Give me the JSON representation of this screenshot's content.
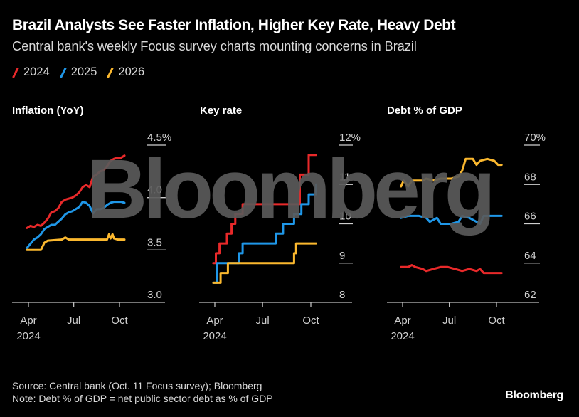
{
  "header": {
    "title": "Brazil Analysts See Faster Inflation, Higher Key Rate, Heavy Debt",
    "subtitle": "Central bank's weekly Focus survey charts mounting concerns in Brazil"
  },
  "legend": [
    {
      "label": "2024",
      "color": "#e8292a"
    },
    {
      "label": "2025",
      "color": "#1f97e8"
    },
    {
      "label": "2026",
      "color": "#fbb82e"
    }
  ],
  "footer": {
    "source": "Source: Central bank (Oct. 11 Focus survey); Bloomberg",
    "note": "Note: Debt % of GDP = net public sector debt as % of GDP",
    "brand": "Bloomberg"
  },
  "watermark": "Bloomberg",
  "chart_data": [
    {
      "type": "line",
      "title": "Inflation (YoY)",
      "xlabel": "",
      "ylabel": "",
      "x_ticks": [
        "Apr\n2024",
        "Jul",
        "Oct"
      ],
      "x_tick_dates": [
        "2024-04-01",
        "2024-07-01",
        "2024-10-01"
      ],
      "xlim": [
        "2024-03-20",
        "2024-11-20"
      ],
      "ylim": [
        3.0,
        4.5
      ],
      "y_ticks": [
        {
          "value": 4.5,
          "label": "4.5%"
        },
        {
          "value": 4.0,
          "label": "4.0"
        },
        {
          "value": 3.5,
          "label": "3.5"
        },
        {
          "value": 3.0,
          "label": "3.0"
        }
      ],
      "series": [
        {
          "name": "2024",
          "color": "#e8292a",
          "points": [
            [
              "2024-03-29",
              3.71
            ],
            [
              "2024-04-05",
              3.73
            ],
            [
              "2024-04-12",
              3.72
            ],
            [
              "2024-04-19",
              3.74
            ],
            [
              "2024-04-26",
              3.73
            ],
            [
              "2024-05-03",
              3.76
            ],
            [
              "2024-05-10",
              3.8
            ],
            [
              "2024-05-17",
              3.86
            ],
            [
              "2024-05-24",
              3.87
            ],
            [
              "2024-05-31",
              3.9
            ],
            [
              "2024-06-07",
              3.96
            ],
            [
              "2024-06-14",
              3.98
            ],
            [
              "2024-06-21",
              3.99
            ],
            [
              "2024-06-28",
              4.0
            ],
            [
              "2024-07-05",
              4.02
            ],
            [
              "2024-07-12",
              4.05
            ],
            [
              "2024-07-19",
              4.1
            ],
            [
              "2024-07-26",
              4.12
            ],
            [
              "2024-08-02",
              4.1
            ],
            [
              "2024-08-09",
              4.2
            ],
            [
              "2024-08-16",
              4.22
            ],
            [
              "2024-08-23",
              4.25
            ],
            [
              "2024-08-30",
              4.26
            ],
            [
              "2024-09-06",
              4.3
            ],
            [
              "2024-09-13",
              4.35
            ],
            [
              "2024-09-20",
              4.37
            ],
            [
              "2024-09-27",
              4.38
            ],
            [
              "2024-10-04",
              4.38
            ],
            [
              "2024-10-11",
              4.4
            ]
          ]
        },
        {
          "name": "2025",
          "color": "#1f97e8",
          "points": [
            [
              "2024-03-29",
              3.52
            ],
            [
              "2024-04-05",
              3.56
            ],
            [
              "2024-04-12",
              3.6
            ],
            [
              "2024-04-19",
              3.62
            ],
            [
              "2024-04-26",
              3.65
            ],
            [
              "2024-05-03",
              3.7
            ],
            [
              "2024-05-10",
              3.72
            ],
            [
              "2024-05-17",
              3.74
            ],
            [
              "2024-05-24",
              3.74
            ],
            [
              "2024-05-31",
              3.77
            ],
            [
              "2024-06-07",
              3.8
            ],
            [
              "2024-06-14",
              3.84
            ],
            [
              "2024-06-21",
              3.86
            ],
            [
              "2024-06-28",
              3.87
            ],
            [
              "2024-07-05",
              3.89
            ],
            [
              "2024-07-12",
              3.91
            ],
            [
              "2024-07-19",
              3.96
            ],
            [
              "2024-07-26",
              3.95
            ],
            [
              "2024-08-02",
              3.92
            ],
            [
              "2024-08-09",
              3.85
            ],
            [
              "2024-08-16",
              3.89
            ],
            [
              "2024-08-23",
              3.89
            ],
            [
              "2024-08-30",
              3.9
            ],
            [
              "2024-09-06",
              3.93
            ],
            [
              "2024-09-13",
              3.95
            ],
            [
              "2024-09-20",
              3.96
            ],
            [
              "2024-09-27",
              3.96
            ],
            [
              "2024-10-04",
              3.96
            ],
            [
              "2024-10-11",
              3.95
            ]
          ]
        },
        {
          "name": "2026",
          "color": "#fbb82e",
          "points": [
            [
              "2024-03-29",
              3.5
            ],
            [
              "2024-04-26",
              3.5
            ],
            [
              "2024-05-03",
              3.57
            ],
            [
              "2024-05-10",
              3.59
            ],
            [
              "2024-06-07",
              3.6
            ],
            [
              "2024-06-14",
              3.62
            ],
            [
              "2024-06-21",
              3.6
            ],
            [
              "2024-09-06",
              3.6
            ],
            [
              "2024-09-10",
              3.65
            ],
            [
              "2024-09-13",
              3.61
            ],
            [
              "2024-09-17",
              3.65
            ],
            [
              "2024-09-20",
              3.61
            ],
            [
              "2024-09-27",
              3.6
            ],
            [
              "2024-10-11",
              3.6
            ]
          ]
        }
      ]
    },
    {
      "type": "line",
      "title": "Key rate",
      "xlabel": "",
      "ylabel": "",
      "x_ticks": [
        "Apr\n2024",
        "Jul",
        "Oct"
      ],
      "x_tick_dates": [
        "2024-04-01",
        "2024-07-01",
        "2024-10-01"
      ],
      "xlim": [
        "2024-03-20",
        "2024-11-20"
      ],
      "ylim": [
        8,
        12
      ],
      "y_ticks": [
        {
          "value": 12,
          "label": "12%"
        },
        {
          "value": 11,
          "label": "11"
        },
        {
          "value": 10,
          "label": "10"
        },
        {
          "value": 9,
          "label": "9"
        },
        {
          "value": 8,
          "label": "8"
        }
      ],
      "series": [
        {
          "name": "2024",
          "color": "#e8292a",
          "points": [
            [
              "2024-03-29",
              9.0
            ],
            [
              "2024-04-03",
              9.25
            ],
            [
              "2024-04-10",
              9.5
            ],
            [
              "2024-04-24",
              9.75
            ],
            [
              "2024-05-03",
              10.0
            ],
            [
              "2024-05-10",
              10.25
            ],
            [
              "2024-05-24",
              10.5
            ],
            [
              "2024-09-06",
              10.5
            ],
            [
              "2024-09-10",
              11.25
            ],
            [
              "2024-09-27",
              11.75
            ],
            [
              "2024-10-11",
              11.75
            ]
          ]
        },
        {
          "name": "2025",
          "color": "#1f97e8",
          "points": [
            [
              "2024-03-29",
              8.5
            ],
            [
              "2024-04-05",
              9.0
            ],
            [
              "2024-05-10",
              9.0
            ],
            [
              "2024-05-17",
              9.25
            ],
            [
              "2024-05-24",
              9.5
            ],
            [
              "2024-07-19",
              9.5
            ],
            [
              "2024-07-26",
              9.75
            ],
            [
              "2024-08-09",
              10.0
            ],
            [
              "2024-08-30",
              10.25
            ],
            [
              "2024-09-13",
              10.5
            ],
            [
              "2024-09-27",
              10.75
            ],
            [
              "2024-10-11",
              11.0
            ]
          ]
        },
        {
          "name": "2026",
          "color": "#fbb82e",
          "points": [
            [
              "2024-03-29",
              8.5
            ],
            [
              "2024-04-08",
              8.5
            ],
            [
              "2024-04-12",
              8.75
            ],
            [
              "2024-04-22",
              8.75
            ],
            [
              "2024-04-26",
              9.0
            ],
            [
              "2024-08-23",
              9.0
            ],
            [
              "2024-08-30",
              9.25
            ],
            [
              "2024-09-03",
              9.5
            ],
            [
              "2024-10-11",
              9.5
            ]
          ]
        }
      ]
    },
    {
      "type": "line",
      "title": "Debt % of GDP",
      "xlabel": "",
      "ylabel": "",
      "x_ticks": [
        "Apr\n2024",
        "Jul",
        "Oct"
      ],
      "x_tick_dates": [
        "2024-04-01",
        "2024-07-01",
        "2024-10-01"
      ],
      "xlim": [
        "2024-03-20",
        "2024-11-20"
      ],
      "ylim": [
        62,
        70
      ],
      "y_ticks": [
        {
          "value": 70,
          "label": "70%"
        },
        {
          "value": 68,
          "label": "68"
        },
        {
          "value": 66,
          "label": "66"
        },
        {
          "value": 64,
          "label": "64"
        },
        {
          "value": 62,
          "label": "62"
        }
      ],
      "series": [
        {
          "name": "2024",
          "color": "#e8292a",
          "points": [
            [
              "2024-03-29",
              63.8
            ],
            [
              "2024-04-12",
              63.8
            ],
            [
              "2024-04-19",
              63.9
            ],
            [
              "2024-04-26",
              63.8
            ],
            [
              "2024-05-10",
              63.7
            ],
            [
              "2024-05-17",
              63.6
            ],
            [
              "2024-05-31",
              63.7
            ],
            [
              "2024-06-14",
              63.8
            ],
            [
              "2024-06-28",
              63.8
            ],
            [
              "2024-07-12",
              63.7
            ],
            [
              "2024-07-26",
              63.6
            ],
            [
              "2024-08-09",
              63.7
            ],
            [
              "2024-08-23",
              63.6
            ],
            [
              "2024-08-30",
              63.7
            ],
            [
              "2024-09-06",
              63.5
            ],
            [
              "2024-10-11",
              63.5
            ]
          ]
        },
        {
          "name": "2025",
          "color": "#1f97e8",
          "points": [
            [
              "2024-03-29",
              66.3
            ],
            [
              "2024-04-12",
              66.4
            ],
            [
              "2024-05-03",
              66.4
            ],
            [
              "2024-05-17",
              66.3
            ],
            [
              "2024-05-24",
              66.1
            ],
            [
              "2024-06-07",
              66.3
            ],
            [
              "2024-06-14",
              66.0
            ],
            [
              "2024-07-05",
              66.0
            ],
            [
              "2024-07-19",
              66.1
            ],
            [
              "2024-07-26",
              66.4
            ],
            [
              "2024-08-09",
              66.3
            ],
            [
              "2024-08-23",
              66.1
            ],
            [
              "2024-08-30",
              66.0
            ],
            [
              "2024-09-06",
              66.4
            ],
            [
              "2024-10-11",
              66.4
            ]
          ]
        },
        {
          "name": "2026",
          "color": "#fbb82e",
          "points": [
            [
              "2024-03-29",
              67.9
            ],
            [
              "2024-04-03",
              68.2
            ],
            [
              "2024-04-12",
              67.9
            ],
            [
              "2024-04-19",
              68.2
            ],
            [
              "2024-05-10",
              68.2
            ],
            [
              "2024-05-17",
              68.3
            ],
            [
              "2024-05-31",
              68.2
            ],
            [
              "2024-06-14",
              68.3
            ],
            [
              "2024-07-05",
              68.3
            ],
            [
              "2024-07-19",
              68.4
            ],
            [
              "2024-07-26",
              68.7
            ],
            [
              "2024-08-02",
              69.3
            ],
            [
              "2024-08-16",
              69.3
            ],
            [
              "2024-08-23",
              69.0
            ],
            [
              "2024-08-30",
              69.2
            ],
            [
              "2024-09-13",
              69.3
            ],
            [
              "2024-09-27",
              69.2
            ],
            [
              "2024-10-04",
              69.0
            ],
            [
              "2024-10-11",
              69.0
            ]
          ]
        }
      ]
    }
  ]
}
